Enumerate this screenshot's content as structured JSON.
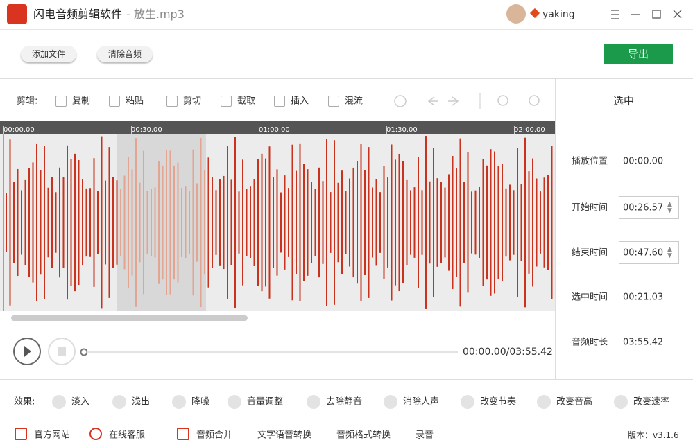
{
  "title_bar": {
    "app_name": "闪电音频剪辑软件",
    "file_name": "- 放生.mp3",
    "user": "yaking"
  },
  "top_buttons": [
    "添加文件",
    "清除音频"
  ],
  "export_button": "导出",
  "toolbar": {
    "label": "剪辑:",
    "items": [
      "复制",
      "粘贴",
      "剪切",
      "截取",
      "插入",
      "混流"
    ]
  },
  "timeline": {
    "ticks": [
      "00:00.00",
      "00:30.00",
      "01:00.00",
      "01:30.00",
      "02:00.00"
    ]
  },
  "side_panel": {
    "title": "选中",
    "rows": [
      {
        "label": "播放位置",
        "value": "00:00.00"
      },
      {
        "label": "开始时间",
        "value": "00:26.57"
      },
      {
        "label": "结束时间",
        "value": "00:47.60"
      },
      {
        "label": "选中时间",
        "value": "00:21.03"
      },
      {
        "label": "音频时长",
        "value": "03:55.42"
      }
    ]
  },
  "player": {
    "time": "00:00.00/03:55.42"
  },
  "effects": {
    "label": "效果:",
    "items": [
      "淡入",
      "浅出",
      "降噪",
      "音量调整",
      "去除静音",
      "消除人声",
      "改变节奏",
      "改变音高",
      "改变速率"
    ]
  },
  "footer": {
    "links": [
      "官方网站",
      "在线客服",
      "音频合并",
      "文字语音转换",
      "音频格式转换",
      "录音"
    ],
    "version": "版本：v3.1.6"
  }
}
